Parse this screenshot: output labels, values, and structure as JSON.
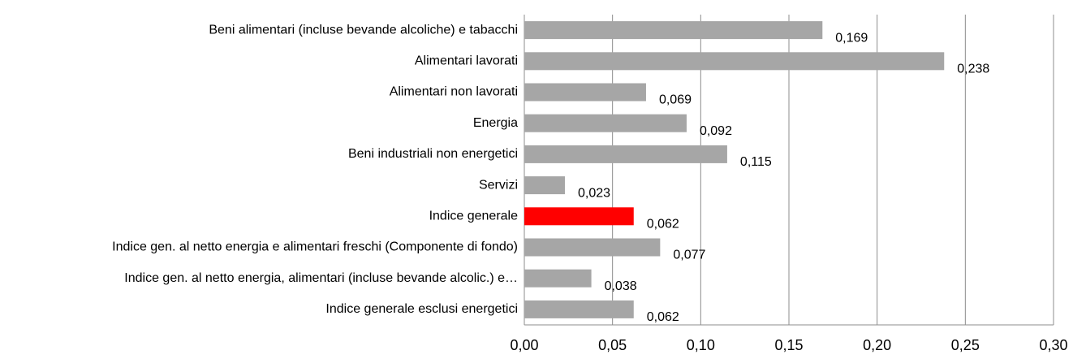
{
  "chart_data": {
    "type": "bar",
    "orientation": "horizontal",
    "categories": [
      "Beni alimentari (incluse bevande alcoliche) e tabacchi",
      "Alimentari lavorati",
      "Alimentari non lavorati",
      "Energia",
      "Beni industriali non energetici",
      "Servizi",
      "Indice generale",
      "Indice gen. al netto energia e alimentari freschi (Componente di fondo)",
      "Indice gen. al netto energia, alimentari (incluse bevande alcolic.) e…",
      "Indice generale esclusi energetici"
    ],
    "values": [
      0.169,
      0.238,
      0.069,
      0.092,
      0.115,
      0.023,
      0.062,
      0.077,
      0.038,
      0.062
    ],
    "value_labels": [
      "0,169",
      "0,238",
      "0,069",
      "0,092",
      "0,115",
      "0,023",
      "0,062",
      "0,077",
      "0,038",
      "0,062"
    ],
    "colors": [
      "#a6a6a6",
      "#a6a6a6",
      "#a6a6a6",
      "#a6a6a6",
      "#a6a6a6",
      "#a6a6a6",
      "#ff0000",
      "#a6a6a6",
      "#a6a6a6",
      "#a6a6a6"
    ],
    "xlim": [
      0,
      0.3
    ],
    "xticks": [
      {
        "value": 0,
        "label": "0,00"
      },
      {
        "value": 0.05,
        "label": "0,05"
      },
      {
        "value": 0.1,
        "label": "0,10"
      },
      {
        "value": 0.15,
        "label": "0,15"
      },
      {
        "value": 0.2,
        "label": "0,20"
      },
      {
        "value": 0.25,
        "label": "0,25"
      },
      {
        "value": 0.3,
        "label": "0,30"
      }
    ],
    "grid": true
  }
}
